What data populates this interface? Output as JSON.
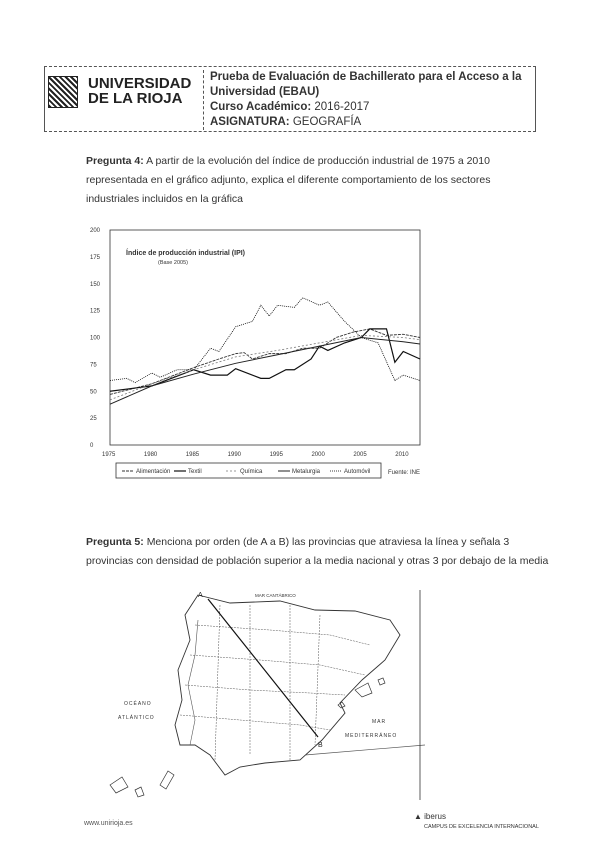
{
  "header": {
    "university_line1": "UNIVERSIDAD",
    "university_line2": "DE LA RIOJA",
    "exam_title": "Prueba de Evaluación de Bachillerato para el Acceso a la Universidad (EBAU)",
    "course_label": "Curso Académico:",
    "course_value": "2016-2017",
    "subject_label": "ASIGNATURA:",
    "subject_value": "GEOGRAFÍA"
  },
  "question4": {
    "label": "Pregunta 4:",
    "text": "A partir de la evolución del índice de producción industrial de 1975 a 2010 representada en el gráfico adjunto, explica el diferente comportamiento de los sectores industriales incluidos en la gráfica"
  },
  "chart_data": {
    "type": "line",
    "title": "Índice de producción industrial (IPI)",
    "subtitle": "(Base 2005)",
    "source": "Fuente: INE",
    "xlim": [
      1975,
      2012
    ],
    "ylim": [
      0,
      200
    ],
    "x_ticks": [
      "1975",
      "1980",
      "1985",
      "1990",
      "1995",
      "2000",
      "2005",
      "2010"
    ],
    "y_ticks": [
      "0",
      "25",
      "50",
      "75",
      "100",
      "125",
      "150",
      "175",
      "200"
    ],
    "legend_position": "bottom",
    "series": [
      {
        "name": "Alimentación",
        "x": [
          1975,
          1980,
          1985,
          1988,
          1990,
          1991,
          1992,
          1994,
          1996,
          1998,
          2000,
          2002,
          2004,
          2006,
          2008,
          2010,
          2012
        ],
        "y": [
          47,
          57,
          72,
          80,
          85,
          86,
          80,
          85,
          85,
          90,
          90,
          100,
          105,
          108,
          102,
          103,
          100
        ]
      },
      {
        "name": "Textil",
        "x": [
          1975,
          1980,
          1985,
          1987,
          1989,
          1990,
          1993,
          1994,
          1996,
          1997,
          1999,
          2000,
          2001,
          2003,
          2005,
          2006,
          2008,
          2009,
          2010,
          2012
        ],
        "y": [
          50,
          55,
          70,
          65,
          65,
          71,
          62,
          62,
          70,
          70,
          80,
          92,
          88,
          95,
          100,
          108,
          108,
          77,
          87,
          80
        ]
      },
      {
        "name": "Química",
        "x": [
          1975,
          1980,
          1985,
          1990,
          1995,
          2000,
          2005,
          2010,
          2012
        ],
        "y": [
          42,
          57,
          70,
          82,
          88,
          95,
          102,
          100,
          98
        ]
      },
      {
        "name": "Metalurgia",
        "x": [
          1975,
          1980,
          1985,
          1990,
          1995,
          2000,
          2005,
          2010,
          2012
        ],
        "y": [
          38,
          55,
          66,
          76,
          84,
          92,
          100,
          96,
          94
        ]
      },
      {
        "name": "Automóvil",
        "x": [
          1975,
          1977,
          1978,
          1980,
          1981,
          1983,
          1985,
          1987,
          1988,
          1990,
          1992,
          1993,
          1994,
          1995,
          1997,
          1998,
          2000,
          2001,
          2003,
          2005,
          2007,
          2009,
          2010,
          2012
        ],
        "y": [
          60,
          62,
          58,
          67,
          63,
          70,
          70,
          90,
          87,
          110,
          115,
          130,
          120,
          130,
          128,
          137,
          130,
          133,
          115,
          100,
          95,
          60,
          65,
          60
        ]
      }
    ],
    "colors": [
      "#333333",
      "#111111",
      "#777777",
      "#222222",
      "#000000"
    ]
  },
  "question5": {
    "label": "Pregunta 5:",
    "text": "Menciona por orden (de A a B) las provincias que atraviesa la línea y señala 3 provincias con densidad de población superior a la media nacional y otras 3 por debajo de la media"
  },
  "map": {
    "point_a": "A",
    "point_b": "B",
    "sea_north": "MAR CANTÁBRICO",
    "ocean_line1": "OCÉANO",
    "ocean_line2": "ATLÁNTICO",
    "sea_east_line1": "MAR",
    "sea_east_line2": "MEDITERRÁNEO"
  },
  "footer": {
    "url": "www.unirioja.es",
    "logo_text": "iberus",
    "logo_sub": "CAMPUS DE EXCELENCIA INTERNACIONAL"
  }
}
